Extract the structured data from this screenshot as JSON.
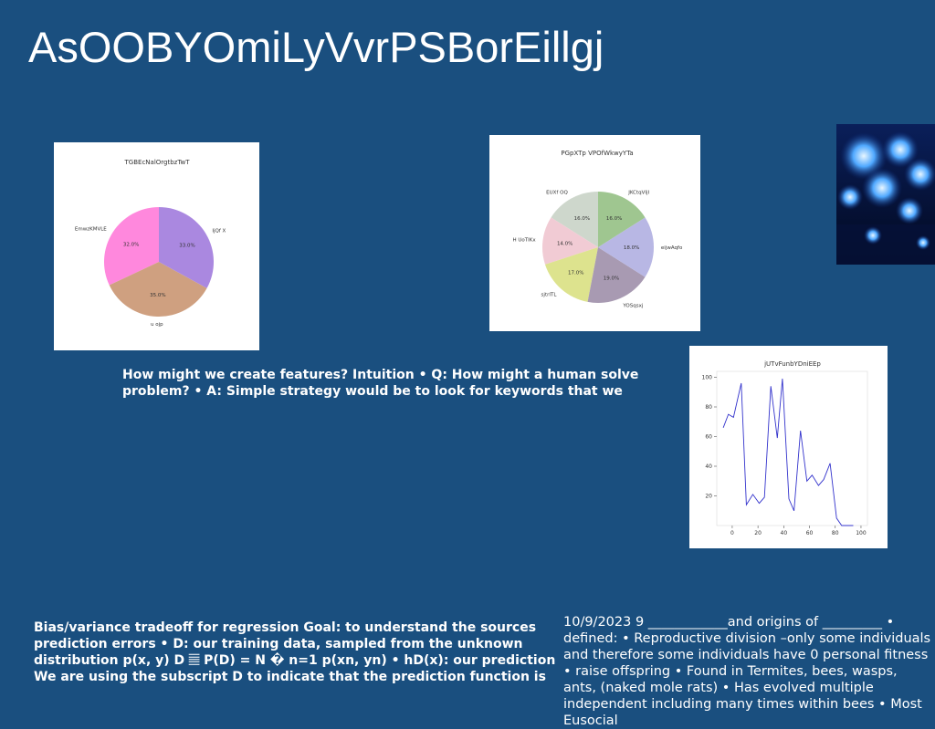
{
  "slide": {
    "title": "AsOOBYOmiLyVvrPSBorEillgj",
    "text_intuition": "How might we create features? Intuition • Q: How might a human solve problem? • A: Simple strategy would be to look for keywords that we",
    "text_bias": "Bias/variance tradeoff for regression Goal: to understand the sources prediction errors • D: our training data, sampled from the unknown distribution p(x, y) D 𝄚 P(D) = N � n=1 p(xn, yn) • hD(x): our prediction We are using the subscript D to indicate that the prediction function is",
    "text_eusocial": "10/9/2023 9 ____________and origins of _________ • defined: • Reproductive division –only some individuals and therefore some individuals have 0 personal fitness • raise offspring • Found in Termites, bees, wasps, ants, (naked mole rats) • Has evolved multiple independent including many times within bees • Most Eusocial"
  },
  "chart_data": [
    {
      "type": "pie",
      "title": "TGBEcNalOrgtbzTwT",
      "labels": [
        "EmwzKMVLE",
        "u ojp",
        "IjQf X"
      ],
      "values": [
        32.0,
        35.0,
        33.0
      ],
      "value_labels": [
        "32.0%",
        "35.0%",
        "33.0%"
      ],
      "colors": [
        "#ff88dd",
        "#cfa080",
        "#aa88e0"
      ]
    },
    {
      "type": "pie",
      "title": "PGpXTp VPOfWkwyYTa",
      "labels": [
        "EUXf OQ",
        "H UoTIKx",
        "sjtrITL",
        "YOSqsxj",
        "eijwAqfo",
        "JKCtqVIjI"
      ],
      "values": [
        16.0,
        14.0,
        17.0,
        19.0,
        18.0,
        16.0
      ],
      "value_labels": [
        "16.0%",
        "14.0%",
        "17.0%",
        "19.0%",
        "18.0%",
        "16.0%"
      ],
      "colors": [
        "#ced7cc",
        "#f1cbd4",
        "#dde38e",
        "#a89ab2",
        "#b8b7e4",
        "#9fc690"
      ]
    },
    {
      "type": "line",
      "title": "jUTvFunbYDniEEp",
      "x": [
        -7,
        -3,
        1,
        7,
        11,
        16,
        21,
        25,
        30,
        35,
        39,
        44,
        48,
        53,
        58,
        62,
        67,
        71,
        76,
        81,
        85,
        90,
        94,
        98
      ],
      "y": [
        66,
        75,
        73,
        96,
        14,
        21,
        15,
        19,
        94,
        59,
        99,
        18,
        10,
        64,
        30,
        34,
        27,
        31,
        42,
        5,
        0,
        0,
        0,
        0
      ],
      "xticks": [
        "0",
        "20",
        "40",
        "60",
        "80",
        "100"
      ],
      "yticks": [
        "20",
        "40",
        "60",
        "80",
        "100"
      ],
      "xlim": [
        -12,
        105
      ],
      "ylim": [
        0,
        104
      ],
      "color": "#3333cc"
    }
  ]
}
